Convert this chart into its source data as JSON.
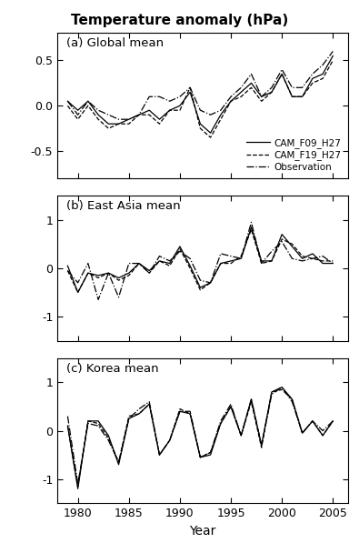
{
  "title": "Temperature anomaly (hPa)",
  "years": [
    1979,
    1980,
    1981,
    1982,
    1983,
    1984,
    1985,
    1986,
    1987,
    1988,
    1989,
    1990,
    1991,
    1992,
    1993,
    1994,
    1995,
    1996,
    1997,
    1998,
    1999,
    2000,
    2001,
    2002,
    2003,
    2004,
    2005
  ],
  "global_f09": [
    0.05,
    -0.05,
    0.05,
    -0.1,
    -0.2,
    -0.2,
    -0.15,
    -0.1,
    -0.05,
    -0.15,
    -0.05,
    0.0,
    0.15,
    -0.2,
    -0.3,
    -0.1,
    0.05,
    0.15,
    0.25,
    0.1,
    0.15,
    0.35,
    0.1,
    0.1,
    0.3,
    0.35,
    0.55
  ],
  "global_f19": [
    0.0,
    -0.15,
    0.0,
    -0.15,
    -0.25,
    -0.2,
    -0.2,
    -0.1,
    -0.1,
    -0.2,
    -0.05,
    -0.05,
    0.2,
    -0.25,
    -0.35,
    -0.15,
    0.05,
    0.1,
    0.2,
    0.05,
    0.15,
    0.35,
    0.1,
    0.1,
    0.25,
    0.3,
    0.5
  ],
  "global_obs": [
    0.05,
    -0.1,
    0.05,
    -0.05,
    -0.1,
    -0.15,
    -0.15,
    -0.1,
    0.1,
    0.1,
    0.05,
    0.1,
    0.2,
    -0.05,
    -0.1,
    -0.05,
    0.1,
    0.2,
    0.35,
    0.1,
    0.2,
    0.4,
    0.2,
    0.2,
    0.35,
    0.45,
    0.6
  ],
  "eastasia_f09": [
    0.05,
    -0.5,
    -0.1,
    -0.15,
    -0.1,
    -0.2,
    -0.1,
    0.1,
    -0.05,
    0.15,
    0.1,
    0.45,
    0.05,
    -0.4,
    -0.3,
    0.1,
    0.15,
    0.2,
    0.85,
    0.15,
    0.15,
    0.7,
    0.45,
    0.2,
    0.3,
    0.1,
    0.1
  ],
  "eastasia_f19": [
    -0.05,
    -0.5,
    -0.1,
    -0.2,
    -0.1,
    -0.25,
    -0.15,
    0.1,
    -0.1,
    0.15,
    0.05,
    0.4,
    0.0,
    -0.45,
    -0.3,
    0.1,
    0.1,
    0.25,
    0.8,
    0.1,
    0.15,
    0.6,
    0.5,
    0.25,
    0.2,
    0.15,
    0.15
  ],
  "eastasia_obs": [
    -0.05,
    -0.3,
    0.1,
    -0.65,
    -0.1,
    -0.6,
    0.1,
    0.1,
    -0.1,
    0.25,
    0.15,
    0.35,
    0.2,
    -0.25,
    -0.3,
    0.3,
    0.25,
    0.2,
    0.95,
    0.1,
    0.35,
    0.55,
    0.2,
    0.15,
    0.2,
    0.25,
    0.1
  ],
  "korea_f09": [
    0.1,
    -1.2,
    0.2,
    0.2,
    -0.1,
    -0.7,
    0.25,
    0.35,
    0.55,
    -0.5,
    -0.2,
    0.4,
    0.35,
    -0.55,
    -0.5,
    0.15,
    0.5,
    -0.1,
    0.65,
    -0.3,
    0.8,
    0.9,
    0.65,
    -0.05,
    0.2,
    -0.1,
    0.2
  ],
  "korea_f19": [
    0.1,
    -1.15,
    0.2,
    0.15,
    -0.15,
    -0.65,
    0.3,
    0.35,
    0.55,
    -0.5,
    -0.2,
    0.45,
    0.35,
    -0.55,
    -0.45,
    0.15,
    0.5,
    -0.1,
    0.6,
    -0.35,
    0.8,
    0.85,
    0.65,
    -0.05,
    0.2,
    -0.1,
    0.2
  ],
  "korea_obs": [
    0.3,
    -1.1,
    0.15,
    0.1,
    -0.2,
    -0.65,
    0.25,
    0.45,
    0.6,
    -0.5,
    -0.2,
    0.4,
    0.4,
    -0.55,
    -0.45,
    0.2,
    0.55,
    -0.1,
    0.65,
    -0.3,
    0.75,
    0.9,
    0.6,
    -0.05,
    0.2,
    0.0,
    0.2
  ],
  "panels": [
    "(a) Global mean",
    "(b) East Asia mean",
    "(c) Korea mean"
  ],
  "ylim_a": [
    -0.8,
    0.8
  ],
  "ylim_bc": [
    -1.5,
    1.5
  ],
  "yticks_a": [
    -0.5,
    0.0,
    0.5
  ],
  "yticks_bc": [
    -1,
    0,
    1
  ],
  "xlim": [
    1978.0,
    2006.5
  ],
  "xticks": [
    1980,
    1985,
    1990,
    1995,
    2000,
    2005
  ],
  "xlabel": "Year",
  "legend_labels": [
    "CAM_F09_H27",
    "CAM_F19_H27",
    "Observation"
  ],
  "line_color": "black",
  "line_width": 0.9
}
